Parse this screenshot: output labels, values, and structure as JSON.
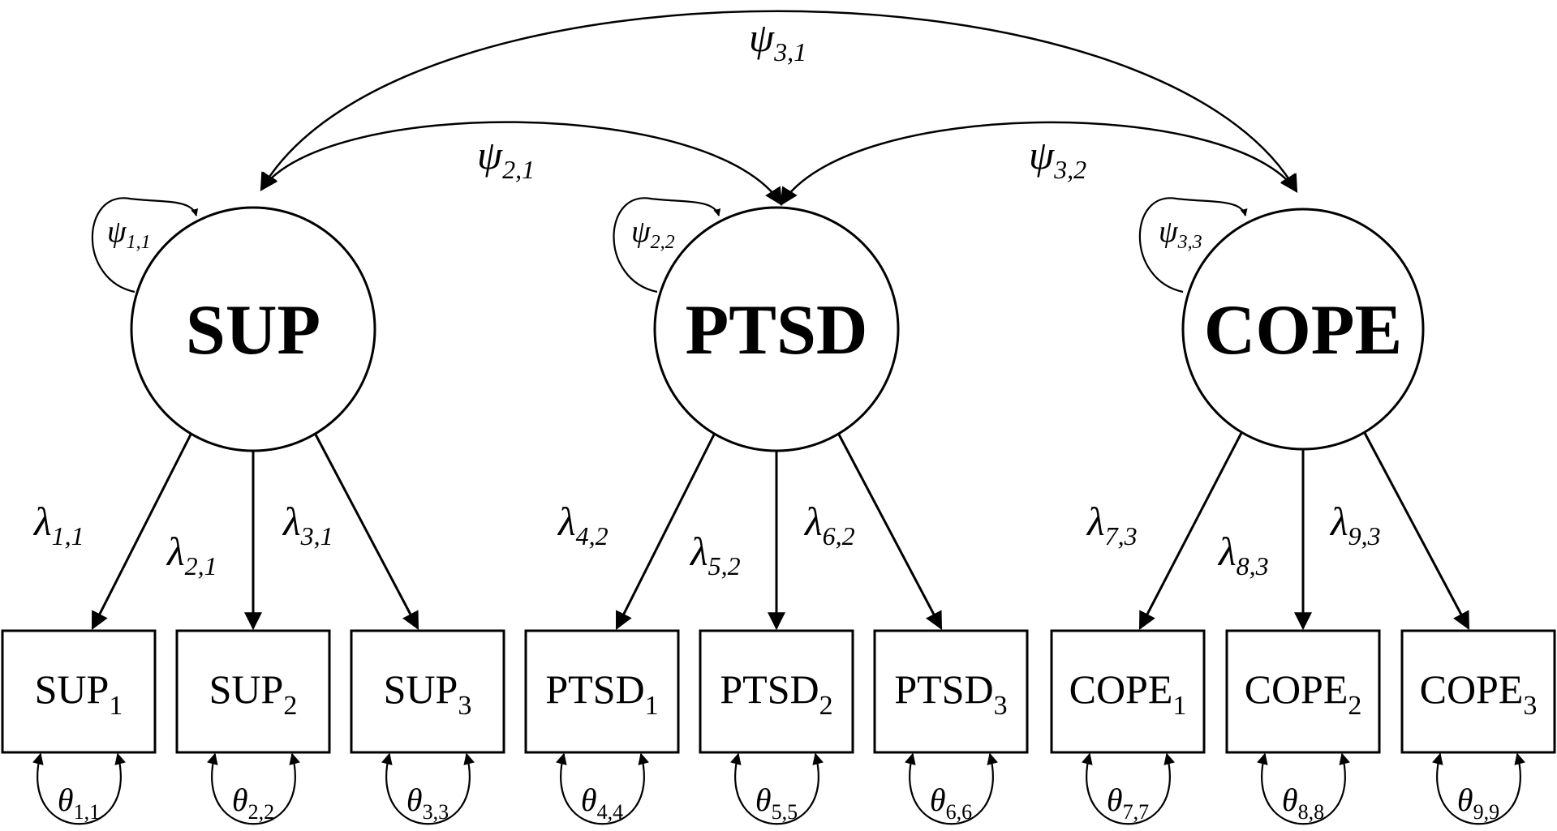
{
  "latents": [
    {
      "name": "SUP",
      "psi_symbol": "ψ",
      "psi_subscript": "1,1"
    },
    {
      "name": "PTSD",
      "psi_symbol": "ψ",
      "psi_subscript": "2,2"
    },
    {
      "name": "COPE",
      "psi_symbol": "ψ",
      "psi_subscript": "3,3"
    }
  ],
  "covariances": [
    {
      "symbol": "ψ",
      "subscript": "3,1"
    },
    {
      "symbol": "ψ",
      "subscript": "2,1"
    },
    {
      "symbol": "ψ",
      "subscript": "3,2"
    }
  ],
  "indicators": [
    {
      "base": "SUP",
      "sub": "1",
      "loading_symbol": "λ",
      "loading_subscript": "1,1",
      "theta_symbol": "θ",
      "theta_subscript": "1,1"
    },
    {
      "base": "SUP",
      "sub": "2",
      "loading_symbol": "λ",
      "loading_subscript": "2,1",
      "theta_symbol": "θ",
      "theta_subscript": "2,2"
    },
    {
      "base": "SUP",
      "sub": "3",
      "loading_symbol": "λ",
      "loading_subscript": "3,1",
      "theta_symbol": "θ",
      "theta_subscript": "3,3"
    },
    {
      "base": "PTSD",
      "sub": "1",
      "loading_symbol": "λ",
      "loading_subscript": "4,2",
      "theta_symbol": "θ",
      "theta_subscript": "4,4"
    },
    {
      "base": "PTSD",
      "sub": "2",
      "loading_symbol": "λ",
      "loading_subscript": "5,2",
      "theta_symbol": "θ",
      "theta_subscript": "5,5"
    },
    {
      "base": "PTSD",
      "sub": "3",
      "loading_symbol": "λ",
      "loading_subscript": "6,2",
      "theta_symbol": "θ",
      "theta_subscript": "6,6"
    },
    {
      "base": "COPE",
      "sub": "1",
      "loading_symbol": "λ",
      "loading_subscript": "7,3",
      "theta_symbol": "θ",
      "theta_subscript": "7,7"
    },
    {
      "base": "COPE",
      "sub": "2",
      "loading_symbol": "λ",
      "loading_subscript": "8,3",
      "theta_symbol": "θ",
      "theta_subscript": "8,8"
    },
    {
      "base": "COPE",
      "sub": "3",
      "loading_symbol": "λ",
      "loading_subscript": "9,3",
      "theta_symbol": "θ",
      "theta_subscript": "9,9"
    }
  ]
}
